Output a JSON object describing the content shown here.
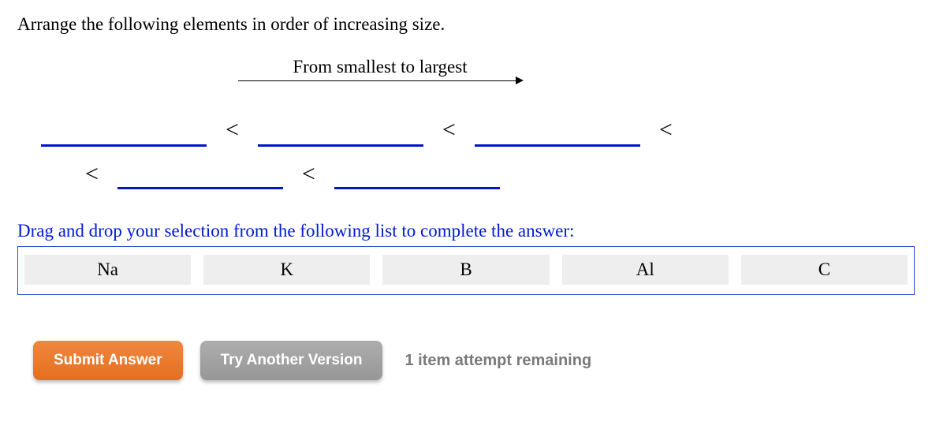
{
  "question": "Arrange the following elements in order of increasing size.",
  "direction_label": "From smallest to largest",
  "separator": "<",
  "instruction": "Drag and drop your selection from the following list to complete the answer:",
  "elements": [
    "Na",
    "K",
    "B",
    "Al",
    "C"
  ],
  "buttons": {
    "submit": "Submit Answer",
    "try_another": "Try Another Version"
  },
  "attempts_text": "1 item attempt remaining",
  "colors": {
    "slot_underline": "#0016c8",
    "instruction_text": "#0019d2",
    "tray_border": "#2e4bd8",
    "tile_bg": "#eeeeee",
    "submit_bg_top": "#f0873e",
    "submit_bg_bottom": "#e56f20",
    "gray_bg_top": "#adadad",
    "gray_bg_bottom": "#979797",
    "attempts_color": "#7a7a7a"
  }
}
